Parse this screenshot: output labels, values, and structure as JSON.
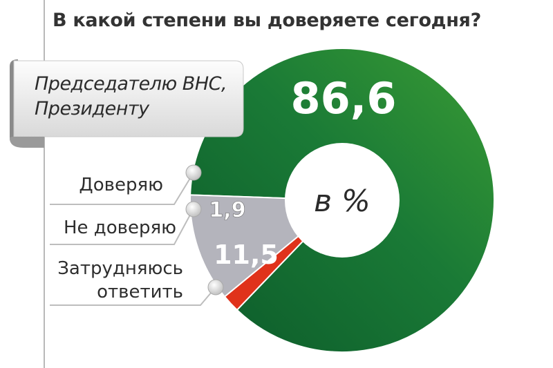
{
  "title": "В какой степени вы доверяете сегодня?",
  "subject": [
    "Председателю ВНС,",
    "Президенту"
  ],
  "center_label": "в %",
  "legend": {
    "trust": "Доверяю",
    "distrust": "Не доверяю",
    "hard": [
      "Затрудняюсь",
      "ответить"
    ]
  },
  "colors": {
    "trust": "#1f8a3a",
    "trust_dark": "#0c5a2a",
    "distrust": "#e0321b",
    "hard": "#b4b4bc",
    "text": "#333333"
  },
  "chart_data": {
    "type": "pie",
    "title": "В какой степени вы доверяете сегодня?",
    "subtitle": "Председателю ВНС, Президенту",
    "unit": "в %",
    "categories": [
      "Доверяю",
      "Не доверяю",
      "Затрудняюсь ответить"
    ],
    "values": [
      86.6,
      1.9,
      11.5
    ],
    "labels": [
      "86,6",
      "1,9",
      "11,5"
    ]
  }
}
